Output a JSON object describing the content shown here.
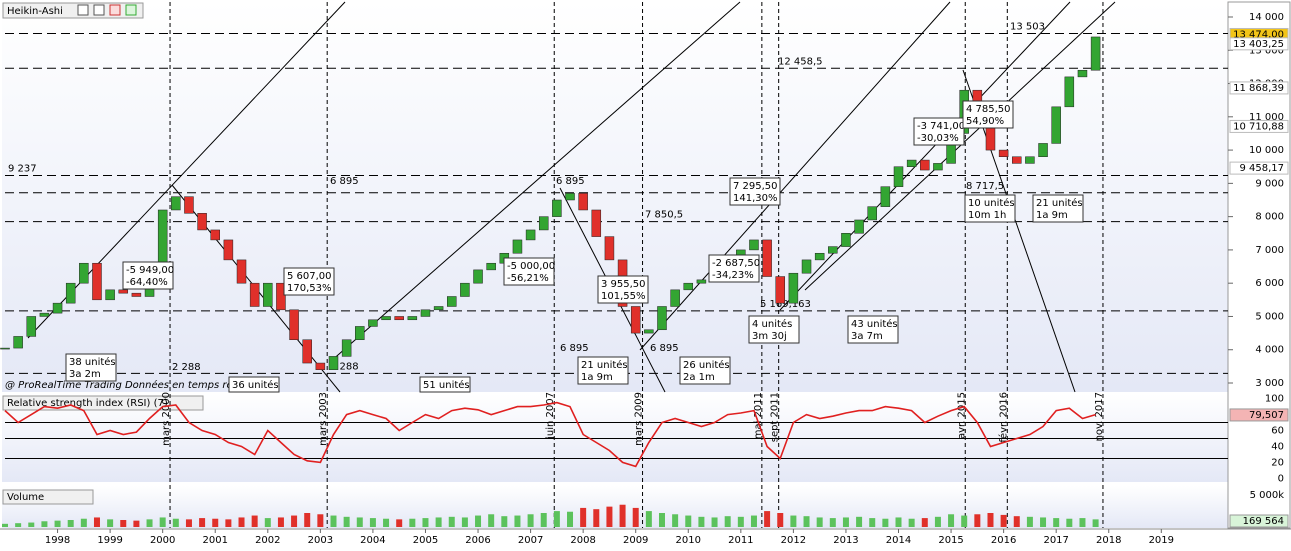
{
  "chart_data": {
    "type": "candlestick",
    "title": "Heikin-Ashi",
    "up_color": "#33a532",
    "down_color": "#e0302a",
    "x": [
      1997.0,
      1997.25,
      1997.5,
      1997.75,
      1998.0,
      1998.25,
      1998.5,
      1998.75,
      1999.0,
      1999.25,
      1999.5,
      1999.75,
      2000.0,
      2000.25,
      2000.5,
      2000.75,
      2001.0,
      2001.25,
      2001.5,
      2001.75,
      2002.0,
      2002.25,
      2002.5,
      2002.75,
      2003.0,
      2003.25,
      2003.5,
      2003.75,
      2004.0,
      2004.25,
      2004.5,
      2004.75,
      2005.0,
      2005.25,
      2005.5,
      2005.75,
      2006.0,
      2006.25,
      2006.5,
      2006.75,
      2007.0,
      2007.25,
      2007.5,
      2007.75,
      2008.0,
      2008.25,
      2008.5,
      2008.75,
      2009.0,
      2009.25,
      2009.5,
      2009.75,
      2010.0,
      2010.25,
      2010.5,
      2010.75,
      2011.0,
      2011.25,
      2011.5,
      2011.75,
      2012.0,
      2012.25,
      2012.5,
      2012.75,
      2013.0,
      2013.25,
      2013.5,
      2013.75,
      2014.0,
      2014.25,
      2014.5,
      2014.75,
      2015.0,
      2015.25,
      2015.5,
      2015.75,
      2016.0,
      2016.25,
      2016.5,
      2016.75,
      2017.0,
      2017.25,
      2017.5,
      2017.75
    ],
    "values": [
      4050,
      4400,
      5000,
      5100,
      5400,
      6000,
      6600,
      5500,
      5800,
      5700,
      5600,
      6400,
      8200,
      8600,
      8100,
      7600,
      7300,
      6700,
      6000,
      5300,
      6000,
      5200,
      4300,
      3600,
      3400,
      3800,
      4300,
      4700,
      4900,
      5000,
      4900,
      5000,
      5200,
      5300,
      5600,
      6000,
      6400,
      6600,
      6900,
      7300,
      7600,
      8000,
      8500,
      8700,
      8200,
      7400,
      6700,
      5300,
      4500,
      4600,
      5300,
      5800,
      6000,
      6100,
      6200,
      6700,
      7000,
      7300,
      6200,
      5400,
      6300,
      6700,
      6900,
      7100,
      7500,
      7900,
      8300,
      8900,
      9500,
      9700,
      9400,
      9600,
      10500,
      11800,
      11300,
      10000,
      9800,
      9600,
      9800,
      10200,
      11300,
      12200,
      12400,
      13400
    ],
    "xlim": [
      1997.0,
      2020.25
    ],
    "xticks": [
      1998,
      1999,
      2000,
      2001,
      2002,
      2003,
      2004,
      2005,
      2006,
      2007,
      2008,
      2009,
      2010,
      2011,
      2012,
      2013,
      2014,
      2015,
      2016,
      2017,
      2018,
      2019
    ],
    "ylim": [
      2790,
      14270
    ],
    "yticks": [
      {
        "value": 3000,
        "label": "3 000"
      },
      {
        "value": 4000,
        "label": "4 000"
      },
      {
        "value": 5000,
        "label": "5 000"
      },
      {
        "value": 6000,
        "label": "6 000"
      },
      {
        "value": 7000,
        "label": "7 000"
      },
      {
        "value": 8000,
        "label": "8 000"
      },
      {
        "value": 9000,
        "label": "9 000"
      },
      {
        "value": 10000,
        "label": "10 000"
      },
      {
        "value": 11000,
        "label": "11 000"
      },
      {
        "value": 12000,
        "label": "12 000"
      },
      {
        "value": 13000,
        "label": "13 000"
      },
      {
        "value": 14000,
        "label": "14 000"
      }
    ],
    "levels": [
      {
        "value": 13503,
        "label": "13 503"
      },
      {
        "value": 12458.5,
        "label": "12 458,5"
      },
      {
        "value": 9237,
        "label": "9 237"
      },
      {
        "value": 8717.5,
        "label": "8 717,5"
      },
      {
        "value": 7850.5,
        "label": "7 850,5"
      },
      {
        "value": 5169.163,
        "label": "5 169,163"
      },
      {
        "value": 3288,
        "label": "3 288"
      }
    ],
    "vlines": [
      {
        "x": 2000.14,
        "label": "mars 2000"
      },
      {
        "x": 2003.13,
        "label": "mars 2003"
      },
      {
        "x": 2007.45,
        "label": "juin 2007"
      },
      {
        "x": 2009.13,
        "label": "mars 2009"
      },
      {
        "x": 2011.4,
        "label": "mai 2011"
      },
      {
        "x": 2011.72,
        "label": "sept 2011"
      },
      {
        "x": 2015.27,
        "label": "avr. 2015"
      },
      {
        "x": 2016.07,
        "label": "févr. 2016"
      },
      {
        "x": 2017.89,
        "label": "nov. 2017"
      }
    ],
    "price_tags": [
      {
        "value": 13474,
        "label": "13 474,00",
        "color": "#f2c418"
      },
      {
        "value": 13403.25,
        "label": "13 403,25",
        "color": "#ffffff"
      },
      {
        "value": 11868.39,
        "label": "11 868,39",
        "color": "#ffffff"
      },
      {
        "value": 10710.88,
        "label": "10 710,88",
        "color": "#ffffff"
      },
      {
        "value": 9458.17,
        "label": "9 458,17",
        "color": "#ffffff"
      }
    ],
    "panels": [
      {
        "type": "line",
        "title": "Relative strength index (RSI) (7)",
        "color": "#e02020",
        "values": [
          85,
          70,
          80,
          90,
          88,
          92,
          85,
          55,
          60,
          55,
          58,
          75,
          90,
          92,
          70,
          60,
          55,
          45,
          40,
          30,
          60,
          45,
          30,
          22,
          20,
          55,
          80,
          85,
          80,
          75,
          60,
          70,
          80,
          75,
          85,
          88,
          86,
          80,
          85,
          90,
          90,
          92,
          95,
          90,
          55,
          45,
          35,
          20,
          15,
          45,
          70,
          75,
          70,
          65,
          70,
          80,
          82,
          85,
          40,
          25,
          70,
          80,
          75,
          78,
          82,
          85,
          85,
          90,
          88,
          85,
          70,
          78,
          85,
          90,
          70,
          40,
          45,
          50,
          55,
          65,
          85,
          88,
          75,
          80
        ],
        "ylim": [
          -2,
          102
        ],
        "yticks": [
          0,
          20,
          40,
          60,
          80,
          100
        ],
        "levels": [
          70,
          50,
          25
        ],
        "tag": {
          "value": 79.507,
          "label": "79,507",
          "color": "#f4b4b4"
        }
      },
      {
        "type": "bar",
        "title": "Volume",
        "color": "#5cc25c",
        "values": [
          500,
          600,
          700,
          900,
          1000,
          1100,
          1300,
          1500,
          1200,
          1100,
          1000,
          1200,
          1500,
          1300,
          1200,
          1400,
          1300,
          1200,
          1500,
          1800,
          1400,
          1500,
          1800,
          2200,
          2000,
          1800,
          1600,
          1500,
          1400,
          1300,
          1200,
          1300,
          1400,
          1500,
          1600,
          1500,
          1800,
          2000,
          1700,
          1800,
          2000,
          2200,
          2500,
          2400,
          3000,
          2800,
          3200,
          3500,
          3000,
          2500,
          2200,
          2000,
          1800,
          1600,
          1500,
          1700,
          1600,
          1800,
          2500,
          2200,
          1800,
          1700,
          1500,
          1400,
          1500,
          1600,
          1400,
          1300,
          1500,
          1300,
          1400,
          1600,
          2000,
          1800,
          2000,
          2200,
          1900,
          1700,
          1600,
          1500,
          1400,
          1300,
          1400,
          1200
        ],
        "ylim": [
          0,
          5500
        ],
        "yticks": [
          {
            "value": 5000,
            "label": "5 000k"
          }
        ],
        "tag": {
          "value": 169.564,
          "label": "169 564",
          "color": "#d8f4d8"
        }
      }
    ]
  },
  "annotations": [
    {
      "lines": [
        "-5 949,00",
        "-64,40%"
      ]
    },
    {
      "lines": [
        "5 607,00",
        "170,53%"
      ]
    },
    {
      "lines": [
        "-5 000,00",
        "-56,21%"
      ]
    },
    {
      "lines": [
        "3 955,50",
        "101,55%"
      ]
    },
    {
      "lines": [
        "-2 687,50",
        "-34,23%"
      ]
    },
    {
      "lines": [
        "7 295,50",
        "141,30%"
      ]
    },
    {
      "lines": [
        "-3 741,00",
        "-30,03%"
      ]
    },
    {
      "lines": [
        "4 785,50",
        "54,90%"
      ]
    },
    {
      "lines": [
        "10 unités",
        "10m 1h"
      ]
    },
    {
      "lines": [
        "21 unités",
        "1a 9m"
      ]
    },
    {
      "lines": [
        "38 unités",
        "3a 2m"
      ]
    },
    {
      "lines": [
        "21 unités",
        "1a 9m"
      ]
    },
    {
      "lines": [
        "26 unités",
        "2a 1m"
      ]
    },
    {
      "lines": [
        "4 unités",
        "3m 30j"
      ]
    },
    {
      "lines": [
        "43 unités",
        "3a 7m"
      ]
    },
    {
      "lines": [
        "36 unités"
      ]
    },
    {
      "lines": [
        "51 unités"
      ]
    }
  ],
  "notes": [
    "6 895",
    "6 895",
    "6 895",
    "6 895",
    "2 288"
  ],
  "footer": "@ ProRealTime Trading  Données en temps réel"
}
